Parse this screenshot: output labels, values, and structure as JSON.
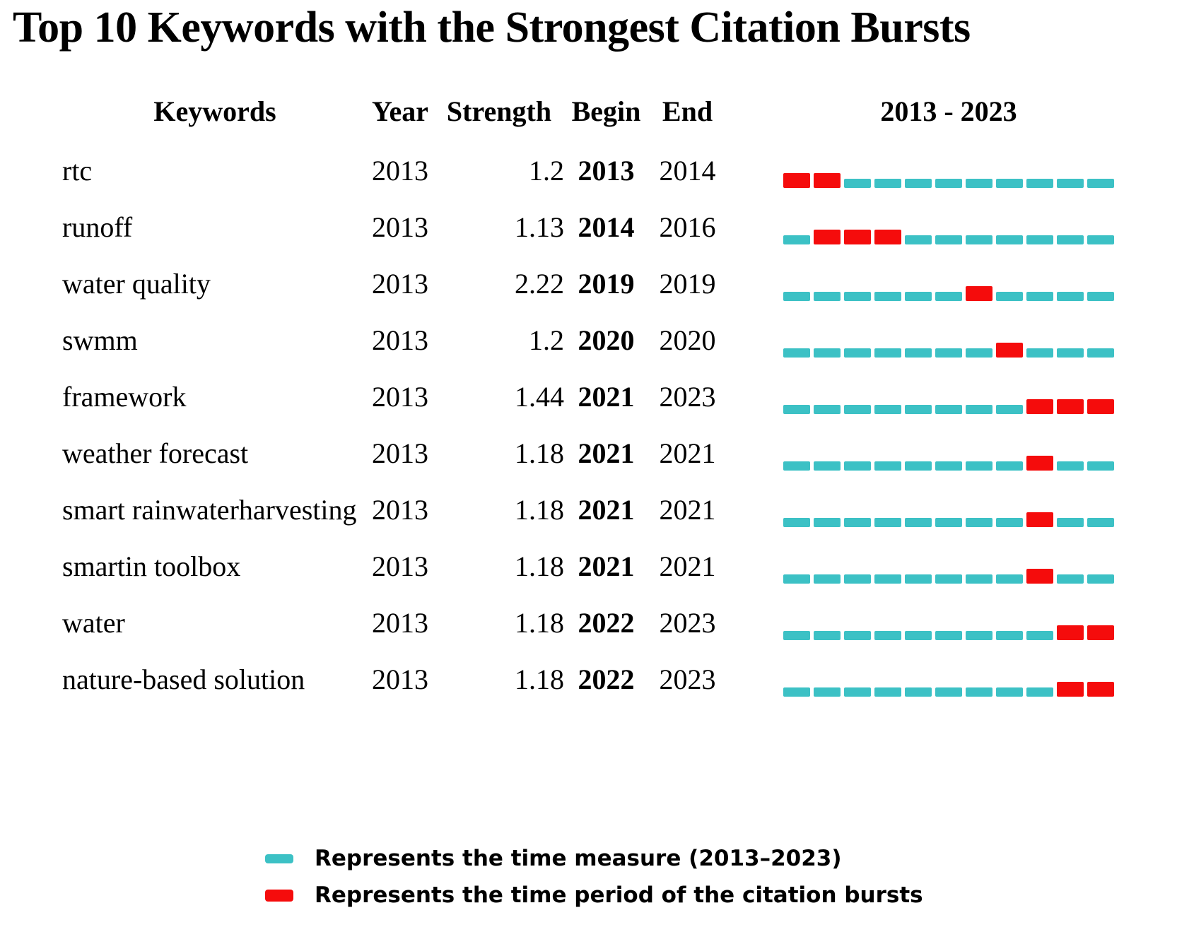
{
  "title": "Top 10 Keywords with the Strongest Citation Bursts",
  "columns": {
    "keyword": "Keywords",
    "year": "Year",
    "strength": "Strength",
    "begin": "Begin",
    "end": "End",
    "timeline": "2013 - 2023"
  },
  "colors": {
    "measure": "#3CC1C5",
    "burst": "#F50C0C",
    "text": "#000000",
    "background": "#FFFFFF"
  },
  "chart_data": {
    "type": "table",
    "title": "Top 10 Keywords with the Strongest Citation Bursts",
    "columns": [
      "Keywords",
      "Year",
      "Strength",
      "Begin",
      "End",
      "2013 - 2023"
    ],
    "timeline": {
      "start_year": 2013,
      "end_year": 2023
    },
    "rows": [
      {
        "keyword": "rtc",
        "year": "2013",
        "strength": "1.2",
        "begin": "2013",
        "end": "2014"
      },
      {
        "keyword": "runoff",
        "year": "2013",
        "strength": "1.13",
        "begin": "2014",
        "end": "2016"
      },
      {
        "keyword": "water quality",
        "year": "2013",
        "strength": "2.22",
        "begin": "2019",
        "end": "2019"
      },
      {
        "keyword": "swmm",
        "year": "2013",
        "strength": "1.2",
        "begin": "2020",
        "end": "2020"
      },
      {
        "keyword": "framework",
        "year": "2013",
        "strength": "1.44",
        "begin": "2021",
        "end": "2023"
      },
      {
        "keyword": "weather forecast",
        "year": "2013",
        "strength": "1.18",
        "begin": "2021",
        "end": "2021"
      },
      {
        "keyword": "smart rainwaterharvesting",
        "year": "2013",
        "strength": "1.18",
        "begin": "2021",
        "end": "2021"
      },
      {
        "keyword": "smartin toolbox",
        "year": "2013",
        "strength": "1.18",
        "begin": "2021",
        "end": "2021"
      },
      {
        "keyword": "water",
        "year": "2013",
        "strength": "1.18",
        "begin": "2022",
        "end": "2023"
      },
      {
        "keyword": "nature-based solution",
        "year": "2013",
        "strength": "1.18",
        "begin": "2022",
        "end": "2023"
      }
    ]
  },
  "legend": {
    "items": [
      {
        "key": "measure",
        "label": "Represents the time measure (2013–2023)"
      },
      {
        "key": "burst",
        "label": "Represents the time period of the citation bursts"
      }
    ]
  }
}
